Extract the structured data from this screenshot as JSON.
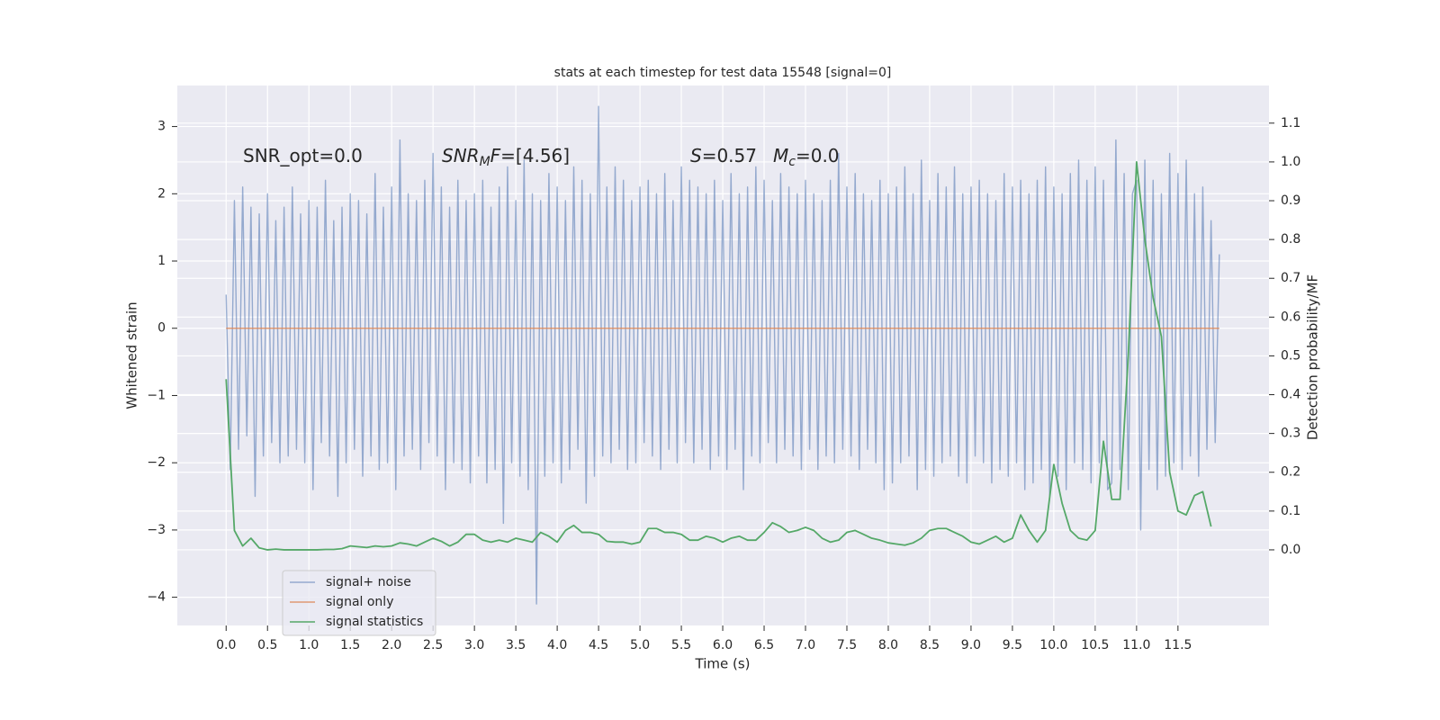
{
  "chart_data": {
    "type": "line",
    "title": "stats at each timestep for test data 15548 [signal=0]",
    "xlabel": "Time (s)",
    "ylabel": "Whitened strain",
    "y2label": "Detection probability/MF",
    "xlim": [
      -0.59,
      12.6
    ],
    "ylim": [
      -4.42,
      3.61
    ],
    "y2lim": [
      -0.195,
      1.197
    ],
    "xticks": [
      {
        "value": 0,
        "label": "0.0"
      },
      0.5,
      {
        "value": 1,
        "label": "1.0"
      },
      1.5,
      {
        "value": 2,
        "label": "2.0"
      },
      2.5,
      {
        "value": 3,
        "label": "3.0"
      },
      3.5,
      {
        "value": 4,
        "label": "4.0"
      },
      4.5,
      {
        "value": 5,
        "label": "5.0"
      },
      5.5,
      {
        "value": 6,
        "label": "6.0"
      },
      6.5,
      {
        "value": 7,
        "label": "7.0"
      },
      7.5,
      {
        "value": 8,
        "label": "8.0"
      },
      8.5,
      {
        "value": 9,
        "label": "9.0"
      },
      9.5,
      {
        "value": 10,
        "label": "10.0"
      },
      10.5,
      {
        "value": 11,
        "label": "11.0"
      },
      11.5
    ],
    "yticks": [
      {
        "value": -4,
        "label": "−4"
      },
      {
        "value": -3,
        "label": "−3"
      },
      {
        "value": -2,
        "label": "−2"
      },
      {
        "value": -1,
        "label": "−1"
      },
      0,
      1,
      2,
      3
    ],
    "y2ticks": [
      {
        "value": 0,
        "label": "0.0"
      },
      0.1,
      0.2,
      0.3,
      0.4,
      0.5,
      0.6,
      0.7,
      0.8,
      0.9,
      {
        "value": 1,
        "label": "1.0"
      },
      1.1
    ],
    "grid": true,
    "legend": "lower left",
    "annotations": [
      [
        {
          "t": "SNR_opt=0.0"
        }
      ],
      [
        {
          "t": "SNR",
          "italic": true
        },
        {
          "t": "M",
          "italic": true,
          "sub": true
        },
        {
          "t": "F",
          "italic": true
        },
        {
          "t": "=[4.56]"
        }
      ],
      [
        {
          "t": "S",
          "italic": true
        },
        {
          "t": "=0.57"
        }
      ],
      [
        {
          "t": "M",
          "italic": true
        },
        {
          "t": "c",
          "italic": true,
          "sub": true
        },
        {
          "t": "=0.0"
        }
      ]
    ],
    "series": [
      {
        "name": "signal+ noise",
        "color": "#4c72b0",
        "x": [
          0,
          0.05,
          0.1,
          0.15,
          0.2,
          0.25,
          0.3,
          0.35,
          0.4,
          0.45,
          0.5,
          0.55,
          0.6,
          0.65,
          0.7,
          0.75,
          0.8,
          0.85,
          0.9,
          0.95,
          1,
          1.05,
          1.1,
          1.15,
          1.2,
          1.25,
          1.3,
          1.35,
          1.4,
          1.45,
          1.5,
          1.55,
          1.6,
          1.65,
          1.7,
          1.75,
          1.8,
          1.85,
          1.9,
          1.95,
          2,
          2.05,
          2.1,
          2.15,
          2.2,
          2.25,
          2.3,
          2.35,
          2.4,
          2.45,
          2.5,
          2.55,
          2.6,
          2.65,
          2.7,
          2.75,
          2.8,
          2.85,
          2.9,
          2.95,
          3,
          3.05,
          3.1,
          3.15,
          3.2,
          3.25,
          3.3,
          3.35,
          3.4,
          3.45,
          3.5,
          3.55,
          3.6,
          3.65,
          3.7,
          3.75,
          3.8,
          3.85,
          3.9,
          3.95,
          4,
          4.05,
          4.1,
          4.15,
          4.2,
          4.25,
          4.3,
          4.35,
          4.4,
          4.45,
          4.5,
          4.55,
          4.6,
          4.65,
          4.7,
          4.75,
          4.8,
          4.85,
          4.9,
          4.95,
          5,
          5.05,
          5.1,
          5.15,
          5.2,
          5.25,
          5.3,
          5.35,
          5.4,
          5.45,
          5.5,
          5.55,
          5.6,
          5.65,
          5.7,
          5.75,
          5.8,
          5.85,
          5.9,
          5.95,
          6,
          6.05,
          6.1,
          6.15,
          6.2,
          6.25,
          6.3,
          6.35,
          6.4,
          6.45,
          6.5,
          6.55,
          6.6,
          6.65,
          6.7,
          6.75,
          6.8,
          6.85,
          6.9,
          6.95,
          7,
          7.05,
          7.1,
          7.15,
          7.2,
          7.25,
          7.3,
          7.35,
          7.4,
          7.45,
          7.5,
          7.55,
          7.6,
          7.65,
          7.7,
          7.75,
          7.8,
          7.85,
          7.9,
          7.95,
          8,
          8.05,
          8.1,
          8.15,
          8.2,
          8.25,
          8.3,
          8.35,
          8.4,
          8.45,
          8.5,
          8.55,
          8.6,
          8.65,
          8.7,
          8.75,
          8.8,
          8.85,
          8.9,
          8.95,
          9,
          9.05,
          9.1,
          9.15,
          9.2,
          9.25,
          9.3,
          9.35,
          9.4,
          9.45,
          9.5,
          9.55,
          9.6,
          9.65,
          9.7,
          9.75,
          9.8,
          9.85,
          9.9,
          9.95,
          10,
          10.05,
          10.1,
          10.15,
          10.2,
          10.25,
          10.3,
          10.35,
          10.4,
          10.45,
          10.5,
          10.55,
          10.6,
          10.65,
          10.7,
          10.75,
          10.8,
          10.85,
          10.9,
          10.95,
          11,
          11.05,
          11.1,
          11.15,
          11.2,
          11.25,
          11.3,
          11.35,
          11.4,
          11.45,
          11.5,
          11.55,
          11.6,
          11.65,
          11.7,
          11.75,
          11.8,
          11.85,
          11.9,
          11.95,
          12
        ],
        "values": [
          0.5,
          -2.1,
          1.9,
          -1.8,
          2.1,
          -1.6,
          1.8,
          -2.5,
          1.7,
          -1.9,
          2.0,
          -1.7,
          1.6,
          -2.0,
          1.8,
          -1.9,
          2.1,
          -1.8,
          1.7,
          -2.0,
          1.9,
          -2.4,
          1.8,
          -1.7,
          2.2,
          -1.9,
          1.6,
          -2.5,
          1.8,
          -2.0,
          2.0,
          -1.8,
          1.9,
          -2.2,
          1.7,
          -1.9,
          2.3,
          -2.1,
          1.8,
          -2.0,
          2.1,
          -2.4,
          2.8,
          -1.9,
          2.0,
          -1.8,
          1.9,
          -2.1,
          2.2,
          -1.7,
          2.6,
          -1.9,
          2.1,
          -2.4,
          1.8,
          -2.0,
          2.2,
          -2.1,
          1.9,
          -2.3,
          2.0,
          -1.9,
          2.2,
          -2.3,
          1.8,
          -2.1,
          2.1,
          -2.9,
          2.4,
          -2.0,
          1.9,
          -2.2,
          2.5,
          -2.4,
          2.0,
          -4.1,
          1.9,
          -2.2,
          2.3,
          -2.0,
          2.1,
          -2.3,
          1.9,
          -2.1,
          2.4,
          -1.8,
          2.2,
          -2.6,
          2.0,
          -2.2,
          3.3,
          -1.9,
          2.1,
          -2.0,
          2.4,
          -1.8,
          2.2,
          -2.1,
          1.9,
          -2.0,
          2.1,
          -1.7,
          2.2,
          -1.9,
          2.0,
          -2.1,
          2.3,
          -1.8,
          1.9,
          -2.0,
          2.4,
          -1.7,
          2.2,
          -2.0,
          2.1,
          -1.8,
          2.0,
          -2.1,
          2.2,
          -1.9,
          1.9,
          -2.1,
          2.3,
          -1.8,
          2.0,
          -2.4,
          2.1,
          -1.9,
          2.4,
          -2.0,
          2.2,
          -1.7,
          1.9,
          -2.0,
          2.3,
          -1.8,
          2.1,
          -1.9,
          2.0,
          -2.1,
          2.2,
          -1.8,
          2.0,
          -2.1,
          1.9,
          -1.9,
          2.2,
          -2.0,
          2.6,
          -1.8,
          2.1,
          -1.9,
          2.3,
          -2.1,
          2.0,
          -1.8,
          1.9,
          -2.0,
          2.2,
          -2.4,
          2.0,
          -2.3,
          2.1,
          -2.0,
          2.4,
          -1.9,
          2.0,
          -2.4,
          2.5,
          -2.1,
          1.9,
          -2.2,
          2.3,
          -2.0,
          2.1,
          -1.9,
          2.4,
          -2.2,
          2.0,
          -2.3,
          2.1,
          -1.9,
          2.2,
          -2.0,
          2.0,
          -2.3,
          1.9,
          -2.1,
          2.3,
          -2.2,
          2.1,
          -2.0,
          2.2,
          -2.4,
          2.0,
          -2.3,
          2.2,
          -2.1,
          2.4,
          -2.5,
          2.1,
          -2.2,
          2.0,
          -2.4,
          2.3,
          -2.0,
          2.5,
          -2.1,
          2.2,
          -2.3,
          2.4,
          -2.0,
          2.2,
          -2.4,
          -2.3,
          2.8,
          -2.1,
          2.3,
          -2.4,
          2.0,
          2.2,
          -3.0,
          2.5,
          -2.1,
          2.2,
          -2.4,
          2.0,
          -2.2,
          2.6,
          -2.0,
          2.3,
          -2.1,
          2.5,
          -1.9,
          2.0,
          -2.2,
          2.1,
          -1.8,
          1.6,
          -1.7,
          1.1
        ]
      },
      {
        "name": "signal only",
        "color": "#dd8452",
        "x": [
          0,
          12
        ],
        "values": [
          0,
          0
        ]
      },
      {
        "name": "signal statistics",
        "color": "#55a868",
        "axis": "y2",
        "x": [
          0,
          0.1,
          0.2,
          0.3,
          0.4,
          0.5,
          0.6,
          0.7,
          0.8,
          0.9,
          1,
          1.1,
          1.2,
          1.3,
          1.4,
          1.5,
          1.6,
          1.7,
          1.8,
          1.9,
          2,
          2.1,
          2.2,
          2.3,
          2.4,
          2.5,
          2.6,
          2.7,
          2.8,
          2.9,
          3,
          3.1,
          3.2,
          3.3,
          3.4,
          3.5,
          3.6,
          3.7,
          3.8,
          3.9,
          4,
          4.1,
          4.2,
          4.3,
          4.4,
          4.5,
          4.6,
          4.7,
          4.8,
          4.9,
          5,
          5.1,
          5.2,
          5.3,
          5.4,
          5.5,
          5.6,
          5.7,
          5.8,
          5.9,
          6,
          6.1,
          6.2,
          6.3,
          6.4,
          6.5,
          6.6,
          6.7,
          6.8,
          6.9,
          7,
          7.1,
          7.2,
          7.3,
          7.4,
          7.5,
          7.6,
          7.7,
          7.8,
          7.9,
          8,
          8.1,
          8.2,
          8.3,
          8.4,
          8.5,
          8.6,
          8.7,
          8.8,
          8.9,
          9,
          9.1,
          9.2,
          9.3,
          9.4,
          9.5,
          9.6,
          9.7,
          9.8,
          9.9,
          10,
          10.1,
          10.2,
          10.3,
          10.4,
          10.5,
          10.6,
          10.7,
          10.8,
          10.9,
          11,
          11.1,
          11.2,
          11.3,
          11.4,
          11.5,
          11.6,
          11.7,
          11.8,
          11.9
        ],
        "values": [
          0.44,
          0.05,
          0.01,
          0.03,
          0.005,
          0.0,
          0.002,
          0.0,
          0.0,
          0.0,
          0.0,
          0.0,
          0.001,
          0.001,
          0.003,
          0.01,
          0.008,
          0.006,
          0.01,
          0.008,
          0.01,
          0.018,
          0.015,
          0.01,
          0.02,
          0.03,
          0.022,
          0.01,
          0.02,
          0.04,
          0.04,
          0.025,
          0.02,
          0.025,
          0.02,
          0.03,
          0.025,
          0.02,
          0.045,
          0.035,
          0.02,
          0.05,
          0.063,
          0.045,
          0.045,
          0.04,
          0.022,
          0.02,
          0.02,
          0.015,
          0.02,
          0.055,
          0.055,
          0.045,
          0.045,
          0.04,
          0.025,
          0.025,
          0.035,
          0.03,
          0.02,
          0.03,
          0.035,
          0.025,
          0.025,
          0.045,
          0.07,
          0.06,
          0.045,
          0.05,
          0.058,
          0.05,
          0.03,
          0.02,
          0.025,
          0.045,
          0.05,
          0.04,
          0.03,
          0.025,
          0.018,
          0.015,
          0.012,
          0.018,
          0.03,
          0.05,
          0.055,
          0.055,
          0.045,
          0.035,
          0.02,
          0.015,
          0.025,
          0.035,
          0.02,
          0.03,
          0.09,
          0.05,
          0.02,
          0.05,
          0.22,
          0.12,
          0.05,
          0.03,
          0.025,
          0.05,
          0.28,
          0.13,
          0.13,
          0.5,
          1.0,
          0.8,
          0.65,
          0.55,
          0.2,
          0.1,
          0.09,
          0.14,
          0.15,
          0.06
        ]
      }
    ]
  }
}
